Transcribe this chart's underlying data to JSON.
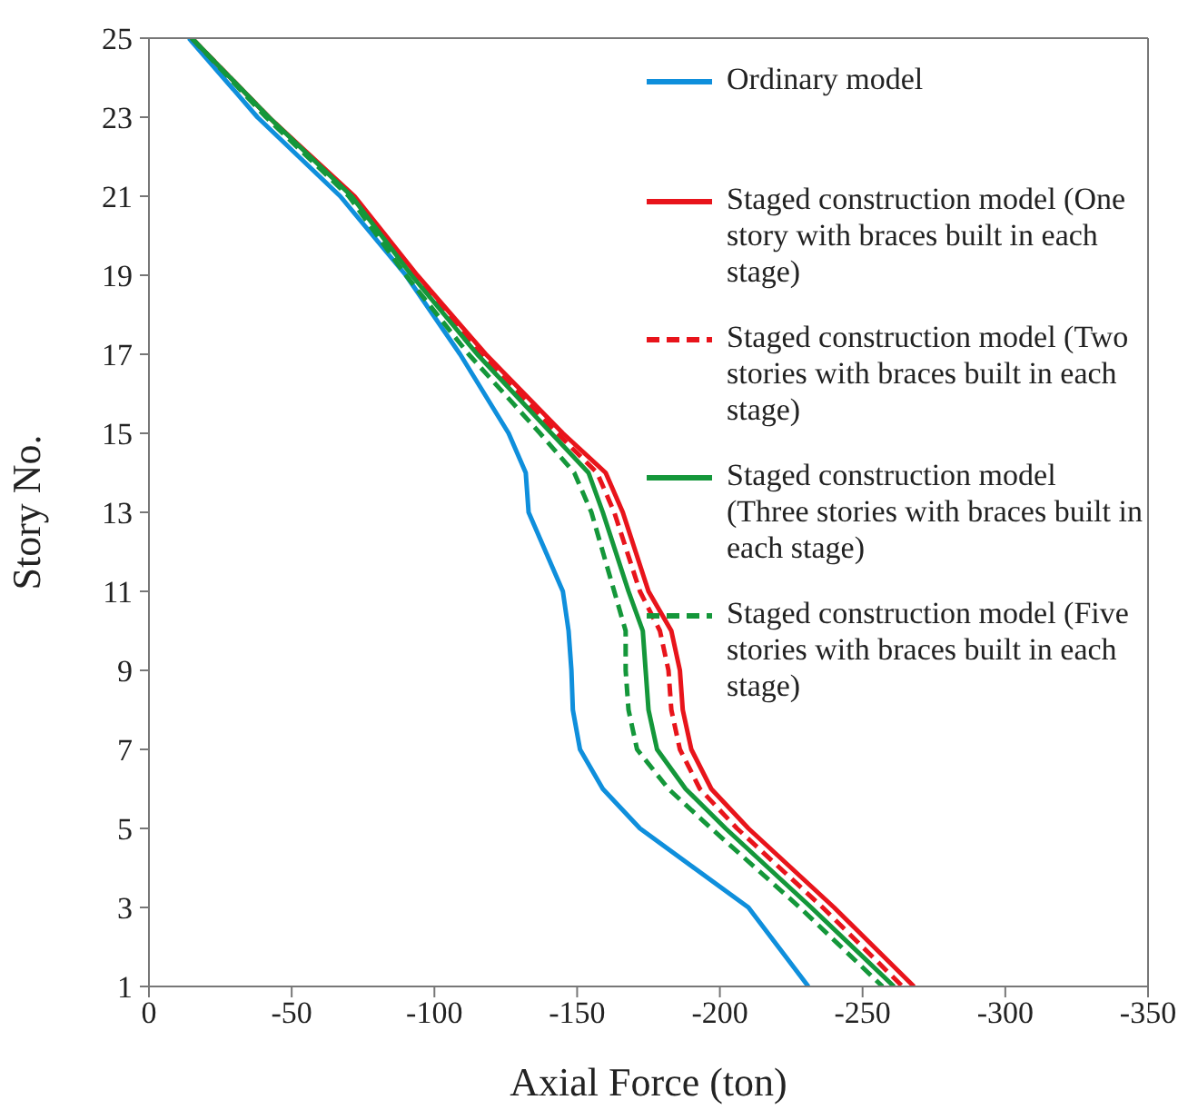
{
  "chart_data": {
    "type": "line",
    "xlabel": "Axial Force (ton)",
    "ylabel": "Story No.",
    "xlim": [
      0,
      -350
    ],
    "xticks": [
      0,
      -50,
      -100,
      -150,
      -200,
      -250,
      -300,
      -350
    ],
    "ylim": [
      1,
      25
    ],
    "yticks": [
      1,
      3,
      5,
      7,
      9,
      11,
      13,
      15,
      17,
      19,
      21,
      23,
      25
    ],
    "grid": false,
    "legend": "top right",
    "marker": "none",
    "series": [
      {
        "name": "Ordinary model",
        "color": "#0f8fdc",
        "line_style": "solid",
        "x": [
          -14,
          -38,
          -67,
          -90,
          -109,
          -126,
          -132,
          -133,
          -145,
          -147,
          -148,
          -148.5,
          -151,
          -159,
          -172,
          -210,
          -231
        ],
        "values": [
          25,
          23,
          21,
          19,
          17,
          15,
          14,
          13,
          11,
          10,
          9,
          8,
          7,
          6,
          5,
          3,
          1
        ]
      },
      {
        "name": "Staged construction model (One story with braces built in each stage)",
        "color": "#e8141b",
        "line_style": "solid",
        "x": [
          -15,
          -42,
          -72,
          -94,
          -118,
          -145,
          -160,
          -166,
          -175,
          -183,
          -186,
          -187,
          -190,
          -197,
          -210,
          -240,
          -268
        ],
        "values": [
          25,
          23,
          21,
          19,
          17,
          15,
          14,
          13,
          11,
          10,
          9,
          8,
          7,
          6,
          5,
          3,
          1
        ]
      },
      {
        "name": "Staged construction model (Two stories with braces built in each stage)",
        "color": "#e8141b",
        "line_style": "dashed",
        "x": [
          -15,
          -42,
          -71,
          -93,
          -116,
          -143,
          -157,
          -163,
          -172,
          -179,
          -182,
          -183,
          -186,
          -193,
          -206,
          -236,
          -264
        ],
        "values": [
          25,
          23,
          21,
          19,
          17,
          15,
          14,
          13,
          11,
          10,
          9,
          8,
          7,
          6,
          5,
          3,
          1
        ]
      },
      {
        "name": "Staged construction model (Three stories with braces built in each stage)",
        "color": "#14973a",
        "line_style": "solid",
        "x": [
          -15,
          -42,
          -71,
          -92,
          -115,
          -141,
          -154,
          -159,
          -168,
          -173,
          -174,
          -175,
          -178,
          -188,
          -202,
          -232,
          -261
        ],
        "values": [
          25,
          23,
          21,
          19,
          17,
          15,
          14,
          13,
          11,
          10,
          9,
          8,
          7,
          6,
          5,
          3,
          1
        ]
      },
      {
        "name": "Staged construction model (Five stories with braces built in each stage)",
        "color": "#14973a",
        "line_style": "dashed",
        "x": [
          -15,
          -41,
          -70,
          -90,
          -112,
          -137,
          -149,
          -155,
          -163,
          -167,
          -167,
          -168,
          -171,
          -182,
          -197,
          -228,
          -257
        ],
        "values": [
          25,
          23,
          21,
          19,
          17,
          15,
          14,
          13,
          11,
          10,
          9,
          8,
          7,
          6,
          5,
          3,
          1
        ]
      }
    ]
  }
}
